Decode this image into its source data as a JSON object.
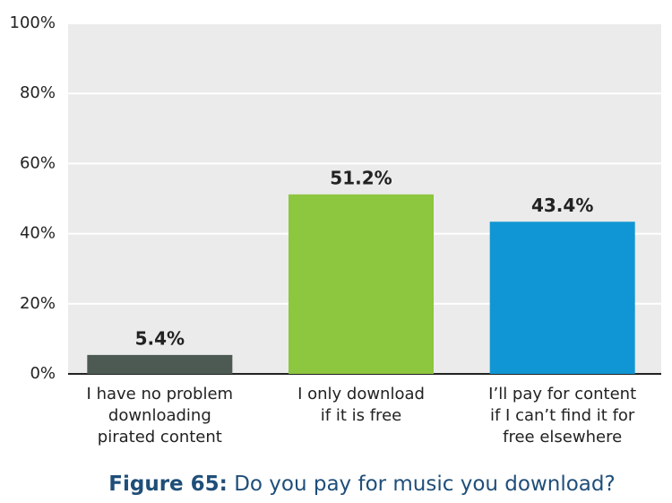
{
  "chart_data": {
    "type": "bar",
    "figure_label": "Figure 65:",
    "title": "Do you pay for music you download?",
    "categories": [
      "I have no problem\ndownloading\npirated content",
      "I only download\nif it is free",
      "I’ll pay for content\nif I can’t find it for\nfree elsewhere"
    ],
    "values": [
      5.4,
      51.2,
      43.4
    ],
    "value_labels": [
      "5.4%",
      "51.2%",
      "43.4%"
    ],
    "colors": [
      "#4d5a54",
      "#8dc63f",
      "#1096d4"
    ],
    "ylim": [
      0,
      100
    ],
    "yticks": [
      {
        "value": 0,
        "label": "0%"
      },
      {
        "value": 20,
        "label": "20%"
      },
      {
        "value": 40,
        "label": "40%"
      },
      {
        "value": 60,
        "label": "60%"
      },
      {
        "value": 80,
        "label": "80%"
      },
      {
        "value": 100,
        "label": "100%"
      }
    ],
    "grid": true
  }
}
